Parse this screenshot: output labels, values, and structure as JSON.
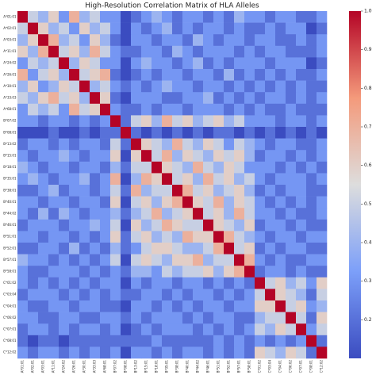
{
  "chart_data": {
    "type": "heatmap",
    "title": "High-Resolution Correlation Matrix of HLA Alleles",
    "colormap": "coolwarm",
    "categories": [
      "A*01:01",
      "A*02:01",
      "A*03:01",
      "A*11:01",
      "A*24:02",
      "A*26:01",
      "A*30:01",
      "A*33:03",
      "A*68:01",
      "B*07:02",
      "B*08:01",
      "B*13:02",
      "B*15:01",
      "B*18:01",
      "B*35:01",
      "B*38:01",
      "B*40:01",
      "B*44:02",
      "B*46:01",
      "B*51:01",
      "B*52:01",
      "B*57:01",
      "B*58:01",
      "C*01:02",
      "C*03:04",
      "C*04:01",
      "C*06:02",
      "C*07:01",
      "C*08:01",
      "C*12:02"
    ],
    "values": [
      [
        1,
        0.5,
        0.4,
        0.6,
        0.3,
        0.7,
        0.4,
        0.5,
        0.3,
        0.3,
        0.1,
        0.2,
        0.3,
        0.4,
        0.3,
        0.2,
        0.3,
        0.3,
        0.2,
        0.3,
        0.2,
        0.4,
        0.3,
        0.3,
        0.2,
        0.3,
        0.3,
        0.2,
        0.2,
        0.3
      ],
      [
        0.5,
        1,
        0.6,
        0.4,
        0.5,
        0.3,
        0.6,
        0.4,
        0.5,
        0.3,
        0.1,
        0.3,
        0.2,
        0.3,
        0.4,
        0.2,
        0.3,
        0.2,
        0.3,
        0.3,
        0.2,
        0.3,
        0.2,
        0.2,
        0.3,
        0.2,
        0.3,
        0.3,
        0.1,
        0.2
      ],
      [
        0.4,
        0.6,
        1,
        0.7,
        0.4,
        0.5,
        0.3,
        0.6,
        0.4,
        0.2,
        0.1,
        0.3,
        0.3,
        0.2,
        0.3,
        0.3,
        0.2,
        0.4,
        0.3,
        0.2,
        0.3,
        0.3,
        0.2,
        0.3,
        0.3,
        0.2,
        0.2,
        0.3,
        0.2,
        0.3
      ],
      [
        0.6,
        0.4,
        0.7,
        1,
        0.5,
        0.6,
        0.4,
        0.7,
        0.5,
        0.3,
        0.2,
        0.2,
        0.3,
        0.3,
        0.2,
        0.4,
        0.3,
        0.2,
        0.3,
        0.3,
        0.3,
        0.2,
        0.3,
        0.2,
        0.3,
        0.3,
        0.2,
        0.2,
        0.2,
        0.3
      ],
      [
        0.3,
        0.5,
        0.4,
        0.5,
        1,
        0.4,
        0.6,
        0.5,
        0.3,
        0.3,
        0.1,
        0.3,
        0.4,
        0.3,
        0.3,
        0.2,
        0.3,
        0.4,
        0.2,
        0.3,
        0.2,
        0.3,
        0.3,
        0.3,
        0.2,
        0.3,
        0.3,
        0.3,
        0.1,
        0.2
      ],
      [
        0.7,
        0.3,
        0.5,
        0.6,
        0.4,
        1,
        0.5,
        0.6,
        0.7,
        0.2,
        0.1,
        0.2,
        0.3,
        0.2,
        0.3,
        0.3,
        0.2,
        0.3,
        0.3,
        0.2,
        0.4,
        0.2,
        0.3,
        0.2,
        0.3,
        0.2,
        0.3,
        0.2,
        0.2,
        0.3
      ],
      [
        0.4,
        0.6,
        0.3,
        0.4,
        0.6,
        0.5,
        1,
        0.4,
        0.5,
        0.3,
        0.2,
        0.3,
        0.2,
        0.3,
        0.4,
        0.3,
        0.3,
        0.2,
        0.3,
        0.3,
        0.2,
        0.3,
        0.2,
        0.3,
        0.2,
        0.3,
        0.2,
        0.3,
        0.2,
        0.2
      ],
      [
        0.5,
        0.4,
        0.6,
        0.7,
        0.5,
        0.6,
        0.4,
        1,
        0.6,
        0.2,
        0.1,
        0.3,
        0.3,
        0.3,
        0.2,
        0.2,
        0.3,
        0.3,
        0.4,
        0.2,
        0.3,
        0.2,
        0.3,
        0.2,
        0.3,
        0.3,
        0.2,
        0.3,
        0.2,
        0.3
      ],
      [
        0.3,
        0.5,
        0.4,
        0.5,
        0.3,
        0.7,
        0.5,
        0.6,
        1,
        0.3,
        0.2,
        0.2,
        0.3,
        0.2,
        0.3,
        0.3,
        0.2,
        0.3,
        0.3,
        0.3,
        0.2,
        0.3,
        0.2,
        0.3,
        0.2,
        0.2,
        0.3,
        0.2,
        0.2,
        0.2
      ],
      [
        0.3,
        0.3,
        0.2,
        0.3,
        0.3,
        0.2,
        0.3,
        0.2,
        0.3,
        1,
        0.2,
        0.5,
        0.6,
        0.4,
        0.7,
        0.5,
        0.6,
        0.4,
        0.5,
        0.6,
        0.4,
        0.5,
        0.3,
        0.3,
        0.3,
        0.2,
        0.3,
        0.3,
        0.2,
        0.3
      ],
      [
        0.1,
        0.1,
        0.1,
        0.2,
        0.1,
        0.1,
        0.2,
        0.1,
        0.2,
        0.2,
        1,
        0.2,
        0.1,
        0.2,
        0.1,
        0.2,
        0.1,
        0.2,
        0.1,
        0.2,
        0.2,
        0.1,
        0.2,
        0.1,
        0.2,
        0.1,
        0.2,
        0.1,
        0.2,
        0.1
      ],
      [
        0.2,
        0.3,
        0.3,
        0.2,
        0.3,
        0.2,
        0.3,
        0.3,
        0.2,
        0.5,
        0.2,
        1,
        0.6,
        0.5,
        0.4,
        0.7,
        0.5,
        0.4,
        0.6,
        0.5,
        0.3,
        0.5,
        0.4,
        0.3,
        0.2,
        0.3,
        0.3,
        0.2,
        0.2,
        0.3
      ],
      [
        0.3,
        0.2,
        0.3,
        0.3,
        0.4,
        0.3,
        0.2,
        0.3,
        0.3,
        0.6,
        0.1,
        0.6,
        1,
        0.5,
        0.7,
        0.4,
        0.6,
        0.5,
        0.4,
        0.6,
        0.5,
        0.6,
        0.4,
        0.2,
        0.3,
        0.3,
        0.2,
        0.3,
        0.2,
        0.3
      ],
      [
        0.4,
        0.3,
        0.2,
        0.3,
        0.3,
        0.2,
        0.3,
        0.3,
        0.2,
        0.4,
        0.2,
        0.5,
        0.5,
        1,
        0.6,
        0.5,
        0.4,
        0.7,
        0.5,
        0.4,
        0.6,
        0.5,
        0.3,
        0.3,
        0.3,
        0.2,
        0.3,
        0.2,
        0.3,
        0.2
      ],
      [
        0.3,
        0.4,
        0.3,
        0.2,
        0.3,
        0.3,
        0.4,
        0.2,
        0.3,
        0.7,
        0.1,
        0.4,
        0.7,
        0.6,
        1,
        0.5,
        0.6,
        0.4,
        0.7,
        0.5,
        0.6,
        0.4,
        0.5,
        0.3,
        0.2,
        0.3,
        0.3,
        0.3,
        0.2,
        0.3
      ],
      [
        0.2,
        0.2,
        0.3,
        0.4,
        0.2,
        0.3,
        0.3,
        0.2,
        0.3,
        0.5,
        0.2,
        0.7,
        0.4,
        0.5,
        0.5,
        1,
        0.7,
        0.5,
        0.6,
        0.4,
        0.5,
        0.6,
        0.4,
        0.2,
        0.3,
        0.2,
        0.3,
        0.3,
        0.2,
        0.2
      ],
      [
        0.3,
        0.3,
        0.2,
        0.3,
        0.3,
        0.2,
        0.3,
        0.3,
        0.2,
        0.6,
        0.1,
        0.5,
        0.6,
        0.4,
        0.6,
        0.7,
        1,
        0.6,
        0.5,
        0.7,
        0.4,
        0.6,
        0.5,
        0.3,
        0.2,
        0.3,
        0.2,
        0.3,
        0.2,
        0.3
      ],
      [
        0.3,
        0.2,
        0.4,
        0.2,
        0.4,
        0.3,
        0.2,
        0.3,
        0.3,
        0.4,
        0.2,
        0.4,
        0.5,
        0.7,
        0.4,
        0.5,
        0.6,
        1,
        0.5,
        0.6,
        0.4,
        0.7,
        0.5,
        0.3,
        0.3,
        0.2,
        0.3,
        0.2,
        0.2,
        0.3
      ],
      [
        0.2,
        0.3,
        0.3,
        0.3,
        0.2,
        0.3,
        0.3,
        0.4,
        0.3,
        0.5,
        0.1,
        0.6,
        0.4,
        0.5,
        0.7,
        0.6,
        0.5,
        0.5,
        1,
        0.6,
        0.5,
        0.4,
        0.6,
        0.2,
        0.3,
        0.3,
        0.2,
        0.3,
        0.2,
        0.2
      ],
      [
        0.3,
        0.3,
        0.2,
        0.3,
        0.3,
        0.2,
        0.3,
        0.2,
        0.3,
        0.6,
        0.2,
        0.5,
        0.6,
        0.4,
        0.5,
        0.4,
        0.7,
        0.6,
        0.6,
        1,
        0.7,
        0.5,
        0.4,
        0.3,
        0.2,
        0.3,
        0.3,
        0.2,
        0.3,
        0.3
      ],
      [
        0.2,
        0.2,
        0.3,
        0.3,
        0.2,
        0.4,
        0.2,
        0.3,
        0.2,
        0.4,
        0.2,
        0.3,
        0.5,
        0.6,
        0.6,
        0.5,
        0.4,
        0.4,
        0.5,
        0.7,
        1,
        0.5,
        0.6,
        0.2,
        0.3,
        0.2,
        0.3,
        0.3,
        0.2,
        0.2
      ],
      [
        0.4,
        0.3,
        0.3,
        0.2,
        0.3,
        0.2,
        0.3,
        0.2,
        0.3,
        0.5,
        0.1,
        0.5,
        0.6,
        0.5,
        0.4,
        0.6,
        0.6,
        0.7,
        0.4,
        0.5,
        0.5,
        1,
        0.7,
        0.3,
        0.2,
        0.3,
        0.2,
        0.2,
        0.3,
        0.3
      ],
      [
        0.3,
        0.2,
        0.2,
        0.3,
        0.3,
        0.3,
        0.2,
        0.3,
        0.2,
        0.3,
        0.2,
        0.4,
        0.4,
        0.3,
        0.5,
        0.4,
        0.5,
        0.5,
        0.6,
        0.4,
        0.6,
        0.7,
        1,
        0.2,
        0.3,
        0.3,
        0.2,
        0.3,
        0.2,
        0.2
      ],
      [
        0.3,
        0.2,
        0.3,
        0.2,
        0.3,
        0.2,
        0.3,
        0.2,
        0.3,
        0.3,
        0.1,
        0.3,
        0.2,
        0.3,
        0.3,
        0.2,
        0.3,
        0.3,
        0.2,
        0.3,
        0.2,
        0.3,
        0.2,
        1,
        0.5,
        0.6,
        0.4,
        0.5,
        0.3,
        0.6
      ],
      [
        0.2,
        0.3,
        0.3,
        0.3,
        0.2,
        0.3,
        0.2,
        0.3,
        0.2,
        0.3,
        0.2,
        0.2,
        0.3,
        0.3,
        0.2,
        0.3,
        0.2,
        0.3,
        0.3,
        0.2,
        0.3,
        0.2,
        0.3,
        0.5,
        1,
        0.6,
        0.5,
        0.4,
        0.2,
        0.5
      ],
      [
        0.3,
        0.2,
        0.2,
        0.3,
        0.3,
        0.2,
        0.3,
        0.3,
        0.2,
        0.2,
        0.1,
        0.3,
        0.3,
        0.2,
        0.3,
        0.2,
        0.3,
        0.2,
        0.3,
        0.3,
        0.2,
        0.3,
        0.3,
        0.6,
        0.6,
        1,
        0.5,
        0.6,
        0.3,
        0.4
      ],
      [
        0.3,
        0.3,
        0.2,
        0.2,
        0.3,
        0.3,
        0.2,
        0.2,
        0.3,
        0.3,
        0.2,
        0.3,
        0.2,
        0.3,
        0.3,
        0.3,
        0.2,
        0.3,
        0.2,
        0.3,
        0.3,
        0.2,
        0.2,
        0.4,
        0.5,
        0.5,
        1,
        0.5,
        0.2,
        0.6
      ],
      [
        0.2,
        0.3,
        0.3,
        0.2,
        0.3,
        0.2,
        0.3,
        0.3,
        0.2,
        0.3,
        0.1,
        0.2,
        0.3,
        0.2,
        0.3,
        0.3,
        0.3,
        0.2,
        0.3,
        0.2,
        0.3,
        0.2,
        0.3,
        0.5,
        0.4,
        0.6,
        0.5,
        1,
        0.3,
        0.5
      ],
      [
        0.2,
        0.1,
        0.2,
        0.2,
        0.1,
        0.2,
        0.2,
        0.2,
        0.2,
        0.2,
        0.2,
        0.2,
        0.2,
        0.3,
        0.2,
        0.2,
        0.2,
        0.2,
        0.2,
        0.3,
        0.2,
        0.3,
        0.2,
        0.3,
        0.2,
        0.3,
        0.2,
        0.3,
        1,
        0.2
      ],
      [
        0.3,
        0.2,
        0.3,
        0.3,
        0.2,
        0.3,
        0.2,
        0.3,
        0.2,
        0.3,
        0.1,
        0.3,
        0.3,
        0.2,
        0.3,
        0.2,
        0.3,
        0.3,
        0.2,
        0.3,
        0.2,
        0.3,
        0.2,
        0.6,
        0.5,
        0.4,
        0.6,
        0.5,
        0.2,
        1
      ]
    ],
    "zlim": [
      0.1,
      1
    ],
    "zticks": [
      0.2,
      0.3,
      0.4,
      0.5,
      0.6,
      0.7,
      0.8,
      0.9,
      {
        "value": 1,
        "label": "1.0"
      }
    ]
  }
}
